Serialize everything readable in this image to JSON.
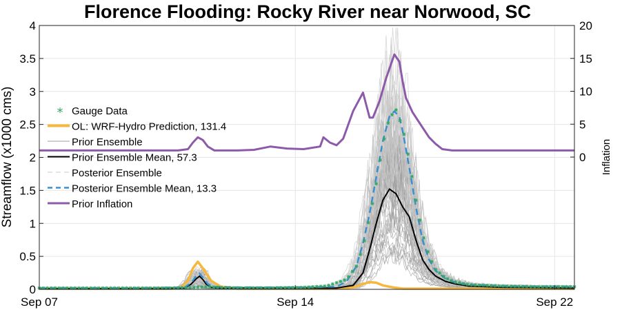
{
  "chart_data": {
    "type": "line",
    "title": "Florence Flooding: Rocky River near Norwood, SC",
    "ylabel": "Streamflow (x1000 cms)",
    "y2label": "Inflation",
    "x_range_days": [
      0,
      16.2
    ],
    "ylim": [
      0,
      4
    ],
    "y2lim": [
      0,
      20
    ],
    "x_ticks": [
      {
        "day": 0,
        "label": "Sep 07"
      },
      {
        "day": 7.75,
        "label": "Sep 14"
      },
      {
        "day": 15.6,
        "label": "Sep 22"
      }
    ],
    "y_ticks": [
      "0",
      "0.5",
      "1",
      "1.5",
      "2",
      "2.5",
      "3",
      "3.5",
      "4"
    ],
    "y2_ticks": [
      "0",
      "5",
      "10",
      "15",
      "20"
    ],
    "grid": true,
    "legend_position": "left",
    "legend": [
      "Gauge Data",
      "OL: WRF-Hydro Prediction, 131.4",
      "Prior Ensemble",
      "Prior Ensemble Mean, 57.3",
      "Posterior Ensemble",
      "Posterior Ensemble Mean, 13.3",
      "Prior Inflation"
    ],
    "colors": {
      "gauge": "#33a666",
      "open_loop": "#f5b83d",
      "prior_ensemble": "#9e9e9e",
      "prior_mean": "#000000",
      "posterior_ensemble": "#c8c8c8",
      "posterior_mean": "#3a8fce",
      "inflation": "#8c5aa8"
    },
    "series": [
      {
        "name": "Gauge Data",
        "axis": "left",
        "x": [
          0,
          1,
          2,
          3,
          4,
          4.7,
          5.1,
          5.4,
          6,
          7,
          8,
          8.7,
          9.3,
          9.6,
          9.8,
          10.0,
          10.2,
          10.4,
          10.6,
          10.8,
          11.0,
          11.2,
          11.4,
          11.6,
          11.8,
          12.0,
          12.3,
          12.6,
          13,
          14,
          15,
          16.2
        ],
        "y": [
          0.02,
          0.02,
          0.02,
          0.02,
          0.02,
          0.03,
          0.04,
          0.03,
          0.02,
          0.02,
          0.03,
          0.05,
          0.15,
          0.35,
          0.65,
          1.1,
          1.6,
          2.2,
          2.6,
          2.72,
          2.45,
          1.95,
          1.35,
          0.85,
          0.5,
          0.3,
          0.17,
          0.11,
          0.07,
          0.05,
          0.04,
          0.04
        ]
      },
      {
        "name": "OL: WRF-Hydro Prediction, 131.4",
        "axis": "left",
        "x": [
          0,
          2,
          4,
          4.3,
          4.5,
          4.65,
          4.8,
          4.95,
          5.2,
          5.5,
          6,
          7,
          9,
          9.5,
          9.8,
          10.0,
          10.2,
          10.4,
          10.7,
          11,
          13,
          16.2
        ],
        "y": [
          0.01,
          0.01,
          0.01,
          0.03,
          0.13,
          0.32,
          0.42,
          0.32,
          0.13,
          0.04,
          0.01,
          0.01,
          0.01,
          0.03,
          0.08,
          0.11,
          0.1,
          0.06,
          0.03,
          0.01,
          0.01,
          0.01
        ]
      },
      {
        "name": "Prior Ensemble Mean, 57.3",
        "axis": "left",
        "x": [
          0,
          3,
          4.4,
          4.6,
          4.75,
          4.85,
          4.95,
          5.05,
          5.2,
          5.4,
          6,
          8,
          9,
          9.5,
          9.8,
          10.0,
          10.2,
          10.4,
          10.6,
          10.8,
          11.0,
          11.2,
          11.4,
          11.6,
          11.8,
          12.0,
          12.3,
          12.6,
          13,
          14,
          16.2
        ],
        "y": [
          0.01,
          0.01,
          0.02,
          0.08,
          0.16,
          0.2,
          0.15,
          0.08,
          0.03,
          0.02,
          0.02,
          0.02,
          0.02,
          0.06,
          0.25,
          0.6,
          1.0,
          1.35,
          1.52,
          1.45,
          1.25,
          1.1,
          0.75,
          0.45,
          0.3,
          0.2,
          0.12,
          0.08,
          0.05,
          0.03,
          0.02
        ]
      },
      {
        "name": "Posterior Ensemble Mean, 13.3",
        "axis": "left",
        "x": [
          0,
          3,
          4.4,
          4.6,
          4.75,
          4.85,
          4.95,
          5.1,
          5.3,
          6,
          8,
          9,
          9.3,
          9.6,
          9.8,
          10.0,
          10.2,
          10.4,
          10.6,
          10.75,
          10.9,
          11.0,
          11.2,
          11.4,
          11.6,
          11.8,
          12.0,
          12.3,
          12.6,
          13,
          14,
          16.2
        ],
        "y": [
          0.02,
          0.02,
          0.03,
          0.1,
          0.2,
          0.24,
          0.18,
          0.08,
          0.04,
          0.03,
          0.03,
          0.04,
          0.12,
          0.35,
          0.7,
          1.15,
          1.7,
          2.25,
          2.62,
          2.7,
          2.62,
          2.4,
          1.85,
          1.25,
          0.75,
          0.45,
          0.28,
          0.16,
          0.1,
          0.07,
          0.05,
          0.04
        ]
      },
      {
        "name": "Prior Inflation",
        "axis": "right",
        "x": [
          0,
          3.8,
          4.2,
          4.5,
          4.65,
          4.8,
          4.95,
          5.1,
          5.3,
          5.6,
          6,
          6.5,
          7,
          7.5,
          8,
          8.5,
          8.6,
          8.8,
          9.0,
          9.2,
          9.5,
          9.8,
          10.0,
          10.1,
          10.3,
          10.5,
          10.75,
          10.9,
          11.0,
          11.1,
          11.3,
          11.6,
          11.8,
          12.0,
          12.2,
          12.5,
          13,
          14,
          16.2
        ],
        "y": [
          1.0,
          1.0,
          1.0,
          1.2,
          2.2,
          3.0,
          2.6,
          1.6,
          1.0,
          1.0,
          1.0,
          1.1,
          1.6,
          1.3,
          1.2,
          1.6,
          3.0,
          2.2,
          1.8,
          2.8,
          7.0,
          9.8,
          6.0,
          6.0,
          8.5,
          12.0,
          15.6,
          14.5,
          11.5,
          9.0,
          6.8,
          4.5,
          3.0,
          2.0,
          1.2,
          1.0,
          1.0,
          1.0,
          1.0
        ]
      }
    ]
  }
}
